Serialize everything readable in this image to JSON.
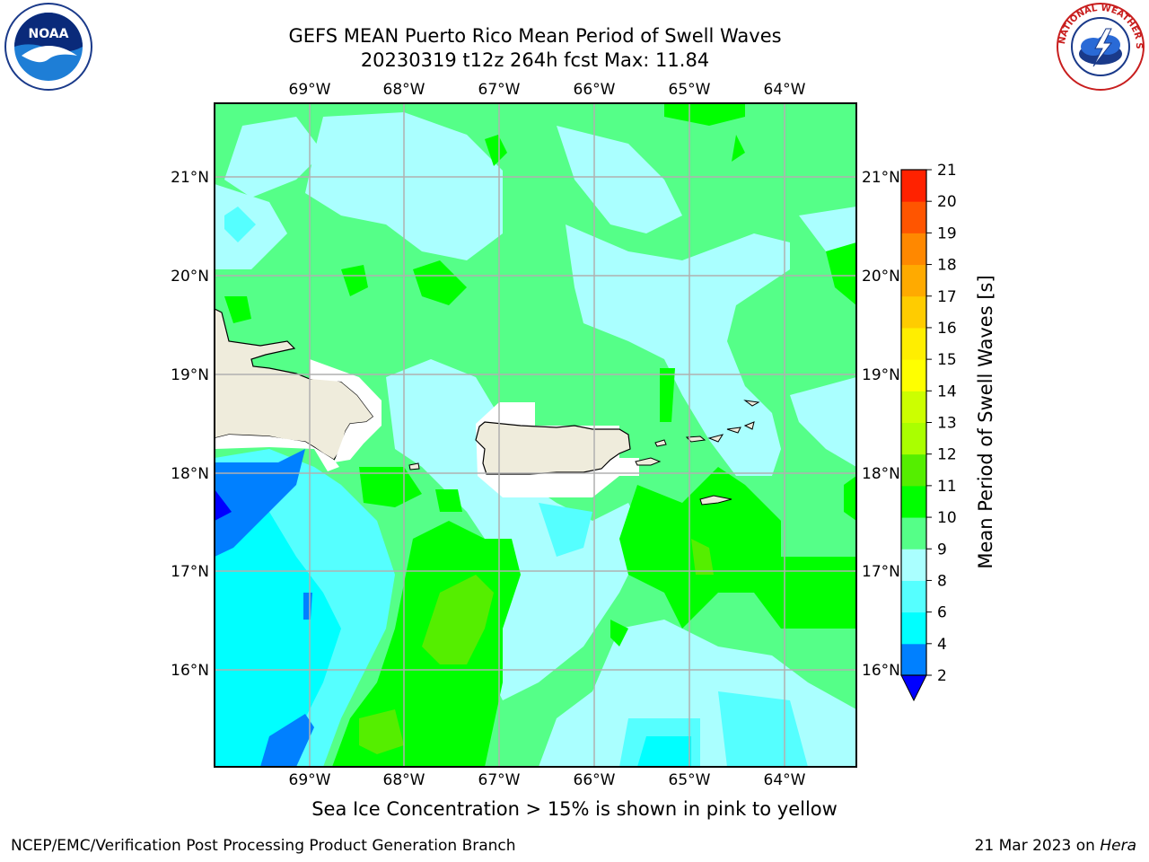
{
  "title": {
    "line1": "GEFS MEAN Puerto Rico Mean Period of Swell Waves",
    "line2": "20230319 t12z 264h fcst   Max: 11.84"
  },
  "logos": {
    "left": {
      "name": "noaa-logo",
      "text": "NOAA"
    },
    "right": {
      "name": "nws-logo",
      "text": "NATIONAL WEATHER SERVICE"
    }
  },
  "map": {
    "lon_labels": [
      "69°W",
      "68°W",
      "67°W",
      "66°W",
      "65°W",
      "64°W"
    ],
    "lat_labels": [
      "21°N",
      "20°N",
      "19°N",
      "18°N",
      "17°N",
      "16°N"
    ],
    "colors": {
      "land": "#efecdc",
      "grid": "#b0b0b0"
    }
  },
  "colorbar": {
    "label": "Mean Period of Swell Waves [s]",
    "ticks": [
      "2",
      "4",
      "6",
      "8",
      "9",
      "10",
      "11",
      "12",
      "13",
      "14",
      "15",
      "16",
      "17",
      "18",
      "19",
      "20",
      "21"
    ],
    "colors": [
      "#0000ff",
      "#0080ff",
      "#00ffff",
      "#55ffff",
      "#aaffff",
      "#55ff88",
      "#00ff00",
      "#55ee00",
      "#aaff00",
      "#ccff00",
      "#ffff00",
      "#ffee00",
      "#ffcc00",
      "#ffaa00",
      "#ff8800",
      "#ff5500",
      "#ff2200",
      "#ff0000"
    ]
  },
  "note": "Sea Ice Concentration > 15% is shown in pink to yellow",
  "footer": {
    "left": "NCEP/EMC/Verification Post Processing Product Generation Branch",
    "right_prefix": "21 Mar 2023 on ",
    "right_machine": "Hera"
  }
}
